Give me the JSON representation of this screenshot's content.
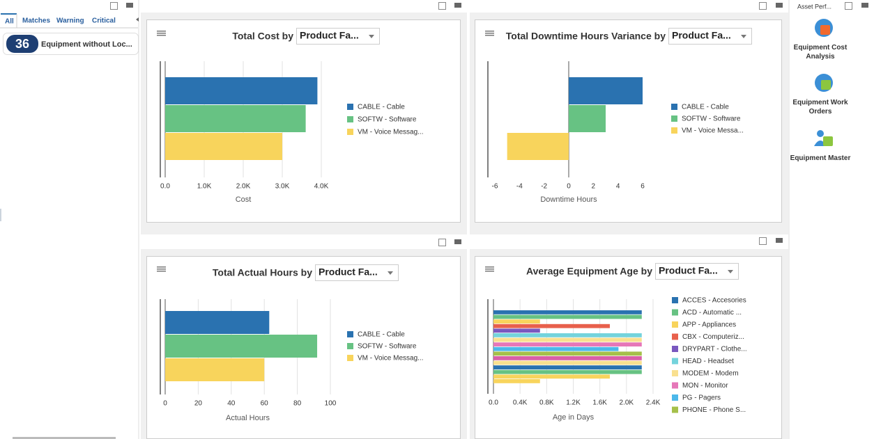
{
  "left_panel": {
    "tabs": [
      "All",
      "Matches",
      "Warning",
      "Critical"
    ],
    "badge": {
      "count": "36",
      "label": "Equipment without Loc..."
    }
  },
  "right_panel": {
    "title": "Asset Perf...",
    "items": [
      "Equipment Cost Analysis",
      "Equipment Work Orders",
      "Equipment Master"
    ]
  },
  "chart_data": [
    {
      "type": "hbar",
      "title": "Total Cost by",
      "dropdown": "Product Fa...",
      "xlabel": "Cost",
      "categories": [
        "CABLE - Cable",
        "SOFTW - Software",
        "VM - Voice Messag..."
      ],
      "values": [
        3900,
        3600,
        3000
      ],
      "colors": [
        "#2a72b0",
        "#67c283",
        "#f8d45c"
      ],
      "xlim": [
        0,
        4000
      ],
      "xticks": [
        {
          "value": 0,
          "label": "0.0"
        },
        {
          "value": 1000,
          "label": "1.0K"
        },
        {
          "value": 2000,
          "label": "2.0K"
        },
        {
          "value": 3000,
          "label": "3.0K"
        },
        {
          "value": 4000,
          "label": "4.0K"
        }
      ],
      "grid": true
    },
    {
      "type": "hbar",
      "title": "Total Downtime Hours Variance by",
      "dropdown": "Product Fa...",
      "xlabel": "Downtime Hours",
      "categories": [
        "CABLE - Cable",
        "SOFTW - Software",
        "VM - Voice Messa..."
      ],
      "values": [
        6,
        3,
        -5
      ],
      "colors": [
        "#2a72b0",
        "#67c283",
        "#f8d45c"
      ],
      "xlim": [
        -6,
        6
      ],
      "xticks": [
        -6,
        -4,
        -2,
        0,
        2,
        4,
        6
      ],
      "grid": false
    },
    {
      "type": "hbar",
      "title": "Total Actual Hours by",
      "dropdown": "Product Fa...",
      "xlabel": "Actual Hours",
      "categories": [
        "CABLE - Cable",
        "SOFTW - Software",
        "VM - Voice Messag..."
      ],
      "values": [
        63,
        92,
        60
      ],
      "colors": [
        "#2a72b0",
        "#67c283",
        "#f8d45c"
      ],
      "xlim": [
        0,
        100
      ],
      "xticks": [
        0,
        20,
        40,
        60,
        80,
        100
      ],
      "grid": true
    },
    {
      "type": "hbar",
      "title": "Average Equipment Age by",
      "dropdown": "Product Fa...",
      "xlabel": "Age in Days",
      "categories": [
        "ACCES - Accesories",
        "ACD - Automatic ...",
        "APP - Appliances",
        "CBX - Computeriz...",
        "DRYPART - Clothe...",
        "HEAD - Headset",
        "MODEM - Modem",
        "MON - Monitor",
        "PG - Pagers",
        "PHONE - Phone S...",
        null,
        null,
        null,
        null,
        null,
        null
      ],
      "values": [
        2230,
        2230,
        700,
        1750,
        700,
        2230,
        2230,
        2230,
        1880,
        2230,
        2230,
        2230,
        2230,
        2230,
        1750,
        700
      ],
      "colors": [
        "#2a72b0",
        "#67c283",
        "#f8d45c",
        "#e8604c",
        "#7a58bf",
        "#74d3dc",
        "#f9e08f",
        "#e677b8",
        "#4cb8ea",
        "#a5c04a",
        "#d95fa8",
        "#f9e08f",
        "#2a72b0",
        "#67c283",
        "#f8d45c",
        "#f8d45c"
      ],
      "xlim": [
        0,
        2400
      ],
      "xticks": [
        {
          "value": 0,
          "label": "0.0"
        },
        {
          "value": 400,
          "label": "0.4K"
        },
        {
          "value": 800,
          "label": "0.8K"
        },
        {
          "value": 1200,
          "label": "1.2K"
        },
        {
          "value": 1600,
          "label": "1.6K"
        },
        {
          "value": 2000,
          "label": "2.0K"
        },
        {
          "value": 2400,
          "label": "2.4K"
        }
      ],
      "grid": true
    }
  ]
}
